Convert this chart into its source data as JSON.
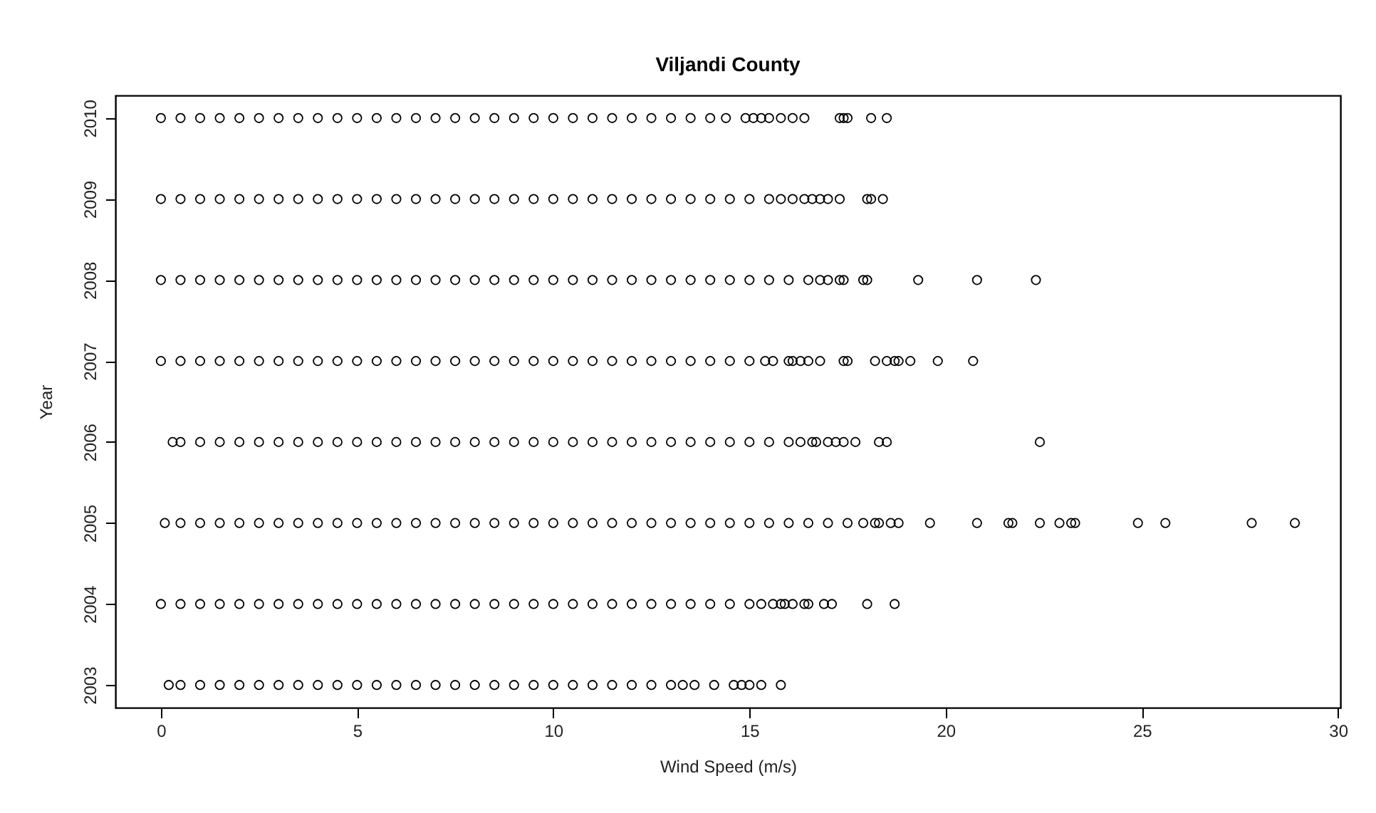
{
  "chart_data": {
    "type": "scatter",
    "title": "Viljandi County",
    "xlabel": "Wind Speed (m/s)",
    "ylabel": "Year",
    "xlim": [
      -1.16,
      30.06
    ],
    "xticks": [
      0,
      5,
      10,
      15,
      20,
      25,
      30
    ],
    "ylim": [
      2002.72,
      2010.28
    ],
    "yticks": [
      2003,
      2004,
      2005,
      2006,
      2007,
      2008,
      2009,
      2010
    ],
    "grid": false,
    "legend": false,
    "marker": "circle",
    "series": [
      {
        "color": "#000000",
        "x": [
          0,
          0.5,
          1,
          1.5,
          2,
          2.5,
          3,
          3.5,
          4,
          4.5,
          5,
          5.5,
          6,
          6.5,
          7,
          7.5,
          8,
          8.5,
          9,
          9.5,
          10,
          10.5,
          11,
          11.5,
          12,
          12.5,
          13,
          13.5,
          14,
          14.4,
          14.9,
          15.1,
          15.3,
          15.5,
          15.8,
          16.1,
          16.4,
          17.3,
          17.4,
          17.5,
          18.1,
          18.5
        ],
        "values": [
          2010,
          2010,
          2010,
          2010,
          2010,
          2010,
          2010,
          2010,
          2010,
          2010,
          2010,
          2010,
          2010,
          2010,
          2010,
          2010,
          2010,
          2010,
          2010,
          2010,
          2010,
          2010,
          2010,
          2010,
          2010,
          2010,
          2010,
          2010,
          2010,
          2010,
          2010,
          2010,
          2010,
          2010,
          2010,
          2010,
          2010,
          2010,
          2010,
          2010,
          2010,
          2010
        ]
      },
      {
        "color": "#000000",
        "x": [
          0,
          0.5,
          1,
          1.5,
          2,
          2.5,
          3,
          3.5,
          4,
          4.5,
          5,
          5.5,
          6,
          6.5,
          7,
          7.5,
          8,
          8.5,
          9,
          9.5,
          10,
          10.5,
          11,
          11.5,
          12,
          12.5,
          13,
          13.5,
          14,
          14.5,
          15,
          15.5,
          15.8,
          16.1,
          16.4,
          16.6,
          16.8,
          17.0,
          17.3,
          18.0,
          18.1,
          18.4
        ],
        "values": [
          2009,
          2009,
          2009,
          2009,
          2009,
          2009,
          2009,
          2009,
          2009,
          2009,
          2009,
          2009,
          2009,
          2009,
          2009,
          2009,
          2009,
          2009,
          2009,
          2009,
          2009,
          2009,
          2009,
          2009,
          2009,
          2009,
          2009,
          2009,
          2009,
          2009,
          2009,
          2009,
          2009,
          2009,
          2009,
          2009,
          2009,
          2009,
          2009,
          2009,
          2009,
          2009
        ]
      },
      {
        "color": "#000000",
        "x": [
          0,
          0.5,
          1,
          1.5,
          2,
          2.5,
          3,
          3.5,
          4,
          4.5,
          5,
          5.5,
          6,
          6.5,
          7,
          7.5,
          8,
          8.5,
          9,
          9.5,
          10,
          10.5,
          11,
          11.5,
          12,
          12.5,
          13,
          13.5,
          14,
          14.5,
          15,
          15.5,
          16,
          16.5,
          16.8,
          17.0,
          17.3,
          17.4,
          17.9,
          18.0,
          19.3,
          20.8,
          22.3
        ],
        "values": [
          2008,
          2008,
          2008,
          2008,
          2008,
          2008,
          2008,
          2008,
          2008,
          2008,
          2008,
          2008,
          2008,
          2008,
          2008,
          2008,
          2008,
          2008,
          2008,
          2008,
          2008,
          2008,
          2008,
          2008,
          2008,
          2008,
          2008,
          2008,
          2008,
          2008,
          2008,
          2008,
          2008,
          2008,
          2008,
          2008,
          2008,
          2008,
          2008,
          2008,
          2008,
          2008,
          2008
        ]
      },
      {
        "color": "#000000",
        "x": [
          0,
          0.5,
          1,
          1.5,
          2,
          2.5,
          3,
          3.5,
          4,
          4.5,
          5,
          5.5,
          6,
          6.5,
          7,
          7.5,
          8,
          8.5,
          9,
          9.5,
          10,
          10.5,
          11,
          11.5,
          12,
          12.5,
          13,
          13.5,
          14,
          14.5,
          15,
          15.4,
          15.6,
          16.0,
          16.1,
          16.3,
          16.5,
          16.8,
          17.4,
          17.5,
          18.2,
          18.5,
          18.7,
          18.8,
          19.1,
          19.8,
          20.7
        ],
        "values": [
          2007,
          2007,
          2007,
          2007,
          2007,
          2007,
          2007,
          2007,
          2007,
          2007,
          2007,
          2007,
          2007,
          2007,
          2007,
          2007,
          2007,
          2007,
          2007,
          2007,
          2007,
          2007,
          2007,
          2007,
          2007,
          2007,
          2007,
          2007,
          2007,
          2007,
          2007,
          2007,
          2007,
          2007,
          2007,
          2007,
          2007,
          2007,
          2007,
          2007,
          2007,
          2007,
          2007,
          2007,
          2007,
          2007,
          2007
        ]
      },
      {
        "color": "#000000",
        "x": [
          0.3,
          0.5,
          1,
          1.5,
          2,
          2.5,
          3,
          3.5,
          4,
          4.5,
          5,
          5.5,
          6,
          6.5,
          7,
          7.5,
          8,
          8.5,
          9,
          9.5,
          10,
          10.5,
          11,
          11.5,
          12,
          12.5,
          13,
          13.5,
          14,
          14.5,
          15,
          15.5,
          16,
          16.3,
          16.6,
          16.7,
          17.0,
          17.2,
          17.4,
          17.7,
          18.3,
          18.5,
          22.4
        ],
        "values": [
          2006,
          2006,
          2006,
          2006,
          2006,
          2006,
          2006,
          2006,
          2006,
          2006,
          2006,
          2006,
          2006,
          2006,
          2006,
          2006,
          2006,
          2006,
          2006,
          2006,
          2006,
          2006,
          2006,
          2006,
          2006,
          2006,
          2006,
          2006,
          2006,
          2006,
          2006,
          2006,
          2006,
          2006,
          2006,
          2006,
          2006,
          2006,
          2006,
          2006,
          2006,
          2006,
          2006
        ]
      },
      {
        "color": "#000000",
        "x": [
          0.1,
          0.5,
          1,
          1.5,
          2,
          2.5,
          3,
          3.5,
          4,
          4.5,
          5,
          5.5,
          6,
          6.5,
          7,
          7.5,
          8,
          8.5,
          9,
          9.5,
          10,
          10.5,
          11,
          11.5,
          12,
          12.5,
          13,
          13.5,
          14,
          14.5,
          15,
          15.5,
          16,
          16.5,
          17,
          17.5,
          17.9,
          18.2,
          18.3,
          18.6,
          18.8,
          19.6,
          20.8,
          21.6,
          21.7,
          22.4,
          22.9,
          23.2,
          23.3,
          24.9,
          25.6,
          27.8,
          28.9
        ],
        "values": [
          2005,
          2005,
          2005,
          2005,
          2005,
          2005,
          2005,
          2005,
          2005,
          2005,
          2005,
          2005,
          2005,
          2005,
          2005,
          2005,
          2005,
          2005,
          2005,
          2005,
          2005,
          2005,
          2005,
          2005,
          2005,
          2005,
          2005,
          2005,
          2005,
          2005,
          2005,
          2005,
          2005,
          2005,
          2005,
          2005,
          2005,
          2005,
          2005,
          2005,
          2005,
          2005,
          2005,
          2005,
          2005,
          2005,
          2005,
          2005,
          2005,
          2005,
          2005,
          2005,
          2005
        ]
      },
      {
        "color": "#000000",
        "x": [
          0,
          0.5,
          1,
          1.5,
          2,
          2.5,
          3,
          3.5,
          4,
          4.5,
          5,
          5.5,
          6,
          6.5,
          7,
          7.5,
          8,
          8.5,
          9,
          9.5,
          10,
          10.5,
          11,
          11.5,
          12,
          12.5,
          13,
          13.5,
          14,
          14.5,
          15,
          15.3,
          15.6,
          15.8,
          15.9,
          16.1,
          16.4,
          16.5,
          16.9,
          17.1,
          18.0,
          18.7
        ],
        "values": [
          2004,
          2004,
          2004,
          2004,
          2004,
          2004,
          2004,
          2004,
          2004,
          2004,
          2004,
          2004,
          2004,
          2004,
          2004,
          2004,
          2004,
          2004,
          2004,
          2004,
          2004,
          2004,
          2004,
          2004,
          2004,
          2004,
          2004,
          2004,
          2004,
          2004,
          2004,
          2004,
          2004,
          2004,
          2004,
          2004,
          2004,
          2004,
          2004,
          2004,
          2004,
          2004
        ]
      },
      {
        "color": "#000000",
        "x": [
          0.2,
          0.5,
          1,
          1.5,
          2,
          2.5,
          3,
          3.5,
          4,
          4.5,
          5,
          5.5,
          6,
          6.5,
          7,
          7.5,
          8,
          8.5,
          9,
          9.5,
          10,
          10.5,
          11,
          11.5,
          12,
          12.5,
          13,
          13.3,
          13.6,
          14.1,
          14.6,
          14.8,
          15.0,
          15.3,
          15.8
        ],
        "values": [
          2003,
          2003,
          2003,
          2003,
          2003,
          2003,
          2003,
          2003,
          2003,
          2003,
          2003,
          2003,
          2003,
          2003,
          2003,
          2003,
          2003,
          2003,
          2003,
          2003,
          2003,
          2003,
          2003,
          2003,
          2003,
          2003,
          2003,
          2003,
          2003,
          2003,
          2003,
          2003,
          2003,
          2003,
          2003
        ]
      }
    ]
  }
}
